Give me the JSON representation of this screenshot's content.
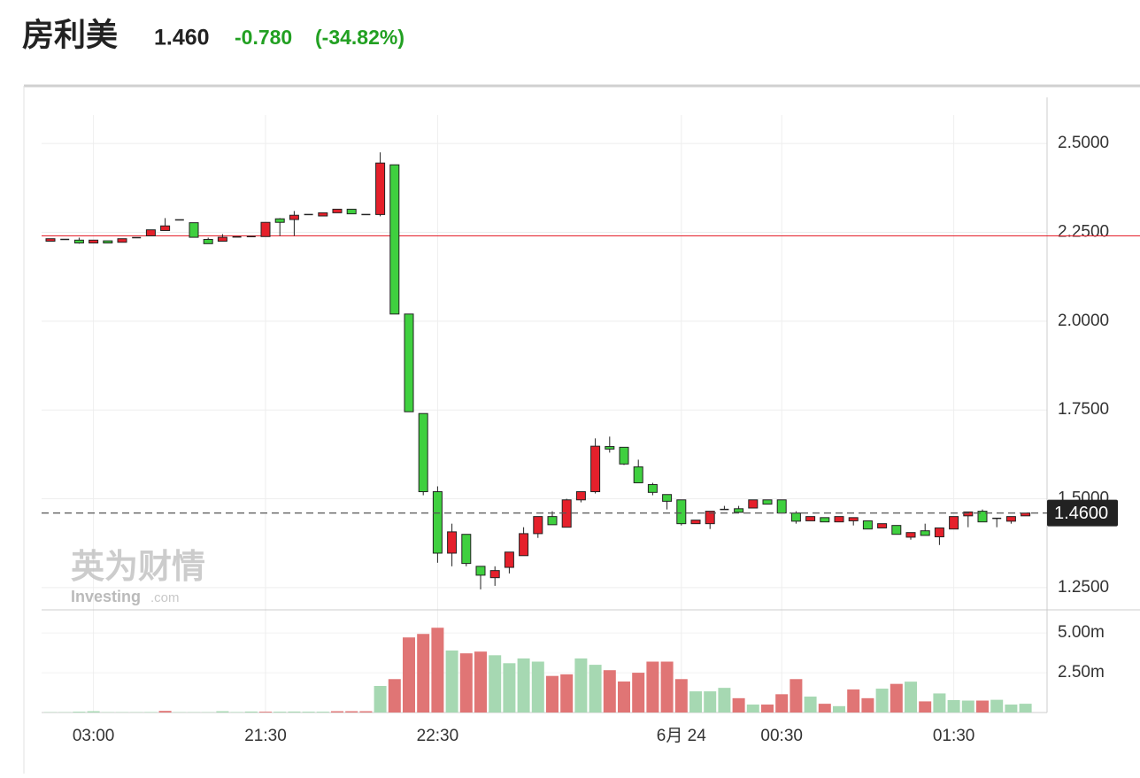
{
  "chart_data": {
    "type": "candlestick",
    "title": "房利美",
    "price": "1.460",
    "change": "-0.780",
    "change_pct": "(-34.82%)",
    "watermark_cn": "英为财情",
    "watermark_en": "Investing",
    "watermark_domain": ".com",
    "categories": [
      null,
      null,
      null,
      "03:00",
      null,
      null,
      null,
      null,
      null,
      null,
      null,
      null,
      null,
      null,
      null,
      "21:30",
      null,
      null,
      null,
      null,
      null,
      null,
      null,
      null,
      null,
      null,
      null,
      "22:30",
      null,
      null,
      null,
      null,
      null,
      null,
      null,
      null,
      null,
      null,
      null,
      null,
      null,
      null,
      null,
      null,
      "6月 24",
      null,
      null,
      null,
      null,
      null,
      null,
      "00:30",
      null,
      null,
      null,
      null,
      null,
      null,
      null,
      null,
      null,
      null,
      null,
      "01:30",
      null,
      null,
      null,
      null,
      null
    ],
    "open": [
      2.225,
      2.23,
      2.228,
      2.22,
      2.226,
      2.222,
      2.235,
      2.24,
      2.255,
      2.285,
      2.277,
      2.23,
      2.225,
      2.237,
      2.238,
      2.238,
      2.288,
      2.286,
      2.3,
      2.296,
      2.305,
      2.315,
      2.3,
      2.3,
      2.44,
      2.02,
      1.74,
      1.52,
      1.347,
      1.4,
      1.31,
      1.278,
      1.307,
      1.34,
      1.402,
      1.45,
      1.42,
      1.497,
      1.52,
      1.647,
      1.645,
      1.59,
      1.54,
      1.512,
      1.497,
      1.43,
      1.43,
      1.47,
      1.472,
      1.474,
      1.497,
      1.497,
      1.46,
      1.438,
      1.447,
      1.435,
      1.438,
      1.438,
      1.418,
      1.425,
      1.392,
      1.41,
      1.393,
      1.415,
      1.452,
      1.465,
      1.445,
      1.437,
      1.452
    ],
    "high": [
      2.232,
      2.23,
      2.235,
      2.228,
      2.226,
      2.232,
      2.235,
      2.257,
      2.29,
      2.285,
      2.277,
      2.235,
      2.245,
      2.237,
      2.238,
      2.278,
      2.29,
      2.31,
      2.3,
      2.305,
      2.315,
      2.315,
      2.3,
      2.475,
      2.44,
      2.02,
      1.74,
      1.535,
      1.43,
      1.4,
      1.31,
      1.31,
      1.35,
      1.42,
      1.45,
      1.465,
      1.5,
      1.52,
      1.67,
      1.675,
      1.645,
      1.61,
      1.545,
      1.512,
      1.497,
      1.44,
      1.465,
      1.48,
      1.48,
      1.497,
      1.497,
      1.497,
      1.465,
      1.45,
      1.447,
      1.45,
      1.447,
      1.438,
      1.43,
      1.425,
      1.405,
      1.43,
      1.418,
      1.45,
      1.463,
      1.47,
      1.445,
      1.45,
      1.46
    ],
    "low": [
      2.225,
      2.23,
      2.218,
      2.22,
      2.22,
      2.222,
      2.235,
      2.24,
      2.255,
      2.285,
      2.236,
      2.218,
      2.225,
      2.237,
      2.238,
      2.238,
      2.24,
      2.24,
      2.3,
      2.296,
      2.305,
      2.302,
      2.3,
      2.295,
      2.02,
      1.745,
      1.51,
      1.32,
      1.31,
      1.31,
      1.245,
      1.255,
      1.29,
      1.34,
      1.39,
      1.427,
      1.42,
      1.49,
      1.515,
      1.63,
      1.595,
      1.545,
      1.51,
      1.47,
      1.425,
      1.43,
      1.415,
      1.47,
      1.462,
      1.474,
      1.485,
      1.46,
      1.43,
      1.438,
      1.435,
      1.435,
      1.425,
      1.415,
      1.418,
      1.4,
      1.385,
      1.397,
      1.37,
      1.415,
      1.42,
      1.435,
      1.42,
      1.43,
      1.452
    ],
    "close": [
      2.232,
      2.23,
      2.22,
      2.228,
      2.22,
      2.232,
      2.235,
      2.257,
      2.268,
      2.285,
      2.236,
      2.218,
      2.236,
      2.237,
      2.238,
      2.278,
      2.278,
      2.298,
      2.3,
      2.305,
      2.315,
      2.302,
      2.3,
      2.445,
      2.02,
      1.745,
      1.52,
      1.347,
      1.407,
      1.318,
      1.285,
      1.298,
      1.35,
      1.402,
      1.45,
      1.427,
      1.497,
      1.52,
      1.648,
      1.64,
      1.598,
      1.545,
      1.518,
      1.493,
      1.43,
      1.44,
      1.465,
      1.47,
      1.462,
      1.497,
      1.485,
      1.46,
      1.437,
      1.45,
      1.435,
      1.45,
      1.447,
      1.415,
      1.43,
      1.4,
      1.405,
      1.397,
      1.418,
      1.45,
      1.463,
      1.435,
      1.445,
      1.45,
      1.46
    ],
    "up_color": "#e5202b",
    "down_color": "#3fd03f",
    "volume": [
      0.02,
      0.02,
      0.05,
      0.08,
      0.02,
      0.02,
      0.02,
      0.03,
      0.1,
      0.02,
      0.02,
      0.02,
      0.08,
      0.03,
      0.06,
      0.05,
      0.05,
      0.06,
      0.05,
      0.05,
      0.08,
      0.08,
      0.08,
      1.67,
      2.1,
      4.72,
      4.94,
      5.33,
      3.9,
      3.72,
      3.83,
      3.6,
      3.1,
      3.4,
      3.2,
      2.3,
      2.4,
      3.4,
      3.0,
      2.66,
      1.95,
      2.5,
      3.2,
      3.2,
      2.1,
      1.33,
      1.33,
      1.55,
      0.9,
      0.5,
      0.5,
      1.15,
      2.1,
      1.0,
      0.55,
      0.4,
      1.45,
      0.9,
      1.5,
      1.8,
      1.94,
      0.7,
      1.2,
      0.78,
      0.75,
      0.75,
      0.8,
      0.5,
      0.55
    ],
    "volume_colors": [
      "#a6d8b2",
      "#a6d8b2",
      "#a6d8b2",
      "#a6d8b2",
      "#a6d8b2",
      "#a6d8b2",
      "#a6d8b2",
      "#a6d8b2",
      "#e07575",
      "#a6d8b2",
      "#a6d8b2",
      "#a6d8b2",
      "#a6d8b2",
      "#a6d8b2",
      "#a6d8b2",
      "#e07575",
      "#a6d8b2",
      "#a6d8b2",
      "#a6d8b2",
      "#a6d8b2",
      "#e07575",
      "#e07575",
      "#e07575",
      "#a6d8b2",
      "#e07575",
      "#e07575",
      "#e07575",
      "#e07575",
      "#a6d8b2",
      "#e07575",
      "#e07575",
      "#a6d8b2",
      "#a6d8b2",
      "#a6d8b2",
      "#a6d8b2",
      "#e07575",
      "#e07575",
      "#a6d8b2",
      "#a6d8b2",
      "#e07575",
      "#e07575",
      "#e07575",
      "#e07575",
      "#e07575",
      "#e07575",
      "#a6d8b2",
      "#a6d8b2",
      "#a6d8b2",
      "#e07575",
      "#a6d8b2",
      "#e07575",
      "#e07575",
      "#e07575",
      "#a6d8b2",
      "#e07575",
      "#a6d8b2",
      "#e07575",
      "#e07575",
      "#a6d8b2",
      "#e07575",
      "#a6d8b2",
      "#e07575",
      "#a6d8b2",
      "#a6d8b2",
      "#a6d8b2",
      "#e07575",
      "#a6d8b2",
      "#a6d8b2",
      "#a6d8b2"
    ],
    "ylim": [
      1.19,
      2.58
    ],
    "yticks": [
      {
        "value": 1.25,
        "label": "1.2500"
      },
      {
        "value": 1.5,
        "label": "1.5000"
      },
      {
        "value": 1.75,
        "label": "1.7500"
      },
      {
        "value": 2,
        "label": "2.0000"
      },
      {
        "value": 2.25,
        "label": "2.2500"
      },
      {
        "value": 2.5,
        "label": "2.5000"
      }
    ],
    "volume_lim": [
      0,
      6.4
    ],
    "volume_ticks": [
      {
        "value": 2.5,
        "label": "2.50m"
      },
      {
        "value": 5,
        "label": "5.00m"
      }
    ],
    "prev_close": 2.24,
    "prev_close_color": "#e5202b",
    "last_price": {
      "value": 1.46,
      "label": "1.4600"
    },
    "grid": true
  }
}
